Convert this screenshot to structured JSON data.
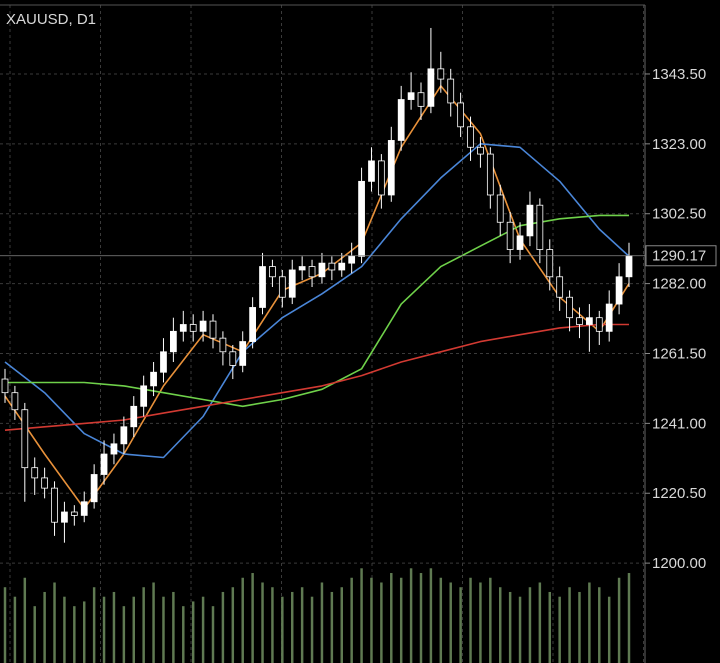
{
  "chart_data": {
    "type": "candlestick",
    "title": "XAUUSD, D1",
    "open": [
      1254,
      1250,
      1245,
      1228,
      1225,
      1222,
      1212,
      1215,
      1214,
      1218,
      1226,
      1232,
      1235,
      1240,
      1246,
      1252,
      1256,
      1262,
      1268,
      1270,
      1268,
      1271,
      1266,
      1262,
      1258,
      1265,
      1275,
      1287,
      1284,
      1278,
      1286,
      1287,
      1284,
      1288,
      1286,
      1288,
      1290,
      1312,
      1318,
      1308,
      1324,
      1336,
      1338,
      1334,
      1345,
      1342,
      1335,
      1328,
      1322,
      1320,
      1308,
      1300,
      1292,
      1296,
      1305,
      1292,
      1284,
      1278,
      1272,
      1270,
      1272,
      1268,
      1276,
      1284
    ],
    "high": [
      1257,
      1252,
      1247,
      1231,
      1228,
      1224,
      1218,
      1217,
      1221,
      1229,
      1236,
      1238,
      1243,
      1249,
      1255,
      1259,
      1266,
      1272,
      1274,
      1273,
      1274,
      1273,
      1268,
      1264,
      1268,
      1278,
      1291,
      1289,
      1286,
      1289,
      1290,
      1289,
      1291,
      1290,
      1291,
      1294,
      1316,
      1322,
      1320,
      1328,
      1340,
      1344,
      1341,
      1357,
      1350,
      1345,
      1338,
      1331,
      1325,
      1322,
      1311,
      1303,
      1300,
      1309,
      1307,
      1295,
      1287,
      1280,
      1275,
      1276,
      1274,
      1280,
      1288,
      1294
    ],
    "low": [
      1247,
      1242,
      1218,
      1220,
      1219,
      1208,
      1206,
      1211,
      1212,
      1216,
      1223,
      1229,
      1232,
      1237,
      1243,
      1249,
      1253,
      1259,
      1265,
      1265,
      1265,
      1263,
      1258,
      1254,
      1256,
      1263,
      1273,
      1281,
      1275,
      1276,
      1283,
      1281,
      1282,
      1283,
      1284,
      1285,
      1288,
      1309,
      1304,
      1306,
      1321,
      1333,
      1330,
      1332,
      1338,
      1331,
      1325,
      1318,
      1316,
      1304,
      1296,
      1288,
      1289,
      1293,
      1288,
      1280,
      1274,
      1268,
      1266,
      1262,
      1264,
      1265,
      1273,
      1281
    ],
    "close": [
      1250,
      1245,
      1228,
      1225,
      1222,
      1212,
      1215,
      1214,
      1218,
      1226,
      1232,
      1235,
      1240,
      1246,
      1252,
      1256,
      1262,
      1268,
      1270,
      1268,
      1271,
      1266,
      1262,
      1258,
      1265,
      1275,
      1287,
      1284,
      1278,
      1286,
      1287,
      1284,
      1288,
      1286,
      1288,
      1290,
      1312,
      1318,
      1308,
      1324,
      1336,
      1338,
      1334,
      1345,
      1342,
      1335,
      1328,
      1322,
      1320,
      1308,
      1300,
      1292,
      1296,
      1305,
      1292,
      1284,
      1278,
      1272,
      1270,
      1272,
      1268,
      1276,
      1284,
      1290.17
    ],
    "up_color": "#ffffff",
    "down_color": "#000000",
    "wick_color": "#ffffff",
    "volume": {
      "color": "#5f7a52",
      "axis": "y2",
      "values": [
        0.8,
        0.7,
        0.9,
        0.6,
        0.75,
        0.85,
        0.7,
        0.6,
        0.65,
        0.8,
        0.7,
        0.75,
        0.6,
        0.7,
        0.8,
        0.85,
        0.7,
        0.75,
        0.6,
        0.65,
        0.7,
        0.6,
        0.75,
        0.8,
        0.9,
        0.95,
        0.85,
        0.8,
        0.7,
        0.75,
        0.8,
        0.7,
        0.85,
        0.75,
        0.8,
        0.9,
        1.0,
        0.9,
        0.85,
        0.95,
        0.9,
        1.0,
        0.95,
        1.0,
        0.9,
        0.85,
        0.8,
        0.9,
        0.85,
        0.9,
        0.8,
        0.75,
        0.7,
        0.8,
        0.85,
        0.75,
        0.7,
        0.8,
        0.75,
        0.85,
        0.8,
        0.7,
        0.9,
        0.95
      ]
    },
    "y2lim": [
      0,
      7
    ],
    "series": [
      {
        "color": "#e8913a",
        "x": [
          0,
          4,
          8,
          12,
          16,
          20,
          24,
          28,
          32,
          36,
          40,
          44,
          48,
          52,
          56,
          60,
          63
        ],
        "values": [
          1249,
          1232,
          1216,
          1232,
          1252,
          1267,
          1262,
          1280,
          1285,
          1294,
          1322,
          1340,
          1326,
          1295,
          1278,
          1268,
          1282
        ]
      },
      {
        "color": "#4a86d8",
        "x": [
          0,
          4,
          8,
          12,
          16,
          20,
          24,
          28,
          32,
          36,
          40,
          44,
          48,
          52,
          56,
          60,
          63
        ],
        "values": [
          1259,
          1250,
          1238,
          1232,
          1231,
          1243,
          1262,
          1272,
          1279,
          1287,
          1301,
          1313,
          1323,
          1322,
          1312,
          1298,
          1290
        ]
      },
      {
        "color": "#6fd14a",
        "x": [
          0,
          4,
          8,
          12,
          16,
          20,
          24,
          28,
          32,
          36,
          40,
          44,
          48,
          52,
          56,
          60,
          63
        ],
        "values": [
          1253,
          1253,
          1253,
          1252,
          1250,
          1248,
          1246,
          1248,
          1251,
          1257,
          1276,
          1287,
          1293,
          1299,
          1301,
          1302,
          1302
        ]
      },
      {
        "color": "#d23a32",
        "x": [
          0,
          4,
          8,
          12,
          16,
          20,
          24,
          28,
          32,
          36,
          40,
          44,
          48,
          52,
          56,
          60,
          63
        ],
        "values": [
          1239,
          1240,
          1241,
          1242,
          1244,
          1246,
          1248,
          1250,
          1252,
          1255,
          1259,
          1262,
          1265,
          1267,
          1269,
          1270,
          1270
        ]
      }
    ],
    "ylim": [
      1170.7,
      1365.2
    ],
    "yticks": [
      {
        "value": 1343.5,
        "label": "1343.50"
      },
      {
        "value": 1323,
        "label": "1323.00"
      },
      {
        "value": 1302.5,
        "label": "1302.50"
      },
      {
        "value": 1282,
        "label": "1282.00"
      },
      {
        "value": 1261.5,
        "label": "1261.50"
      },
      {
        "value": 1241,
        "label": "1241.00"
      },
      {
        "value": 1220.5,
        "label": "1220.50"
      },
      {
        "value": 1200,
        "label": "1200.00"
      }
    ],
    "last_price": 1290.17,
    "grid": true
  }
}
